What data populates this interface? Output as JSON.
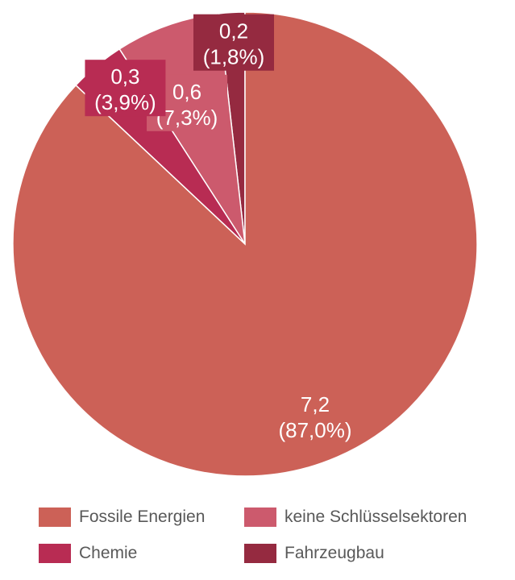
{
  "chart_data": {
    "type": "pie",
    "title": "",
    "start_angle_deg": 0,
    "direction": "clockwise",
    "slices": [
      {
        "name": "Fossile Energien",
        "value": 7.2,
        "value_label": "7,2",
        "percent_label": "(87,0%)",
        "percent": 87.0,
        "color": "#cc6157"
      },
      {
        "name": "Chemie",
        "value": 0.3,
        "value_label": "0,3",
        "percent_label": "(3,9%)",
        "percent": 3.9,
        "color": "#b82c53"
      },
      {
        "name": "keine Schlüsselsektoren",
        "value": 0.6,
        "value_label": "0,6",
        "percent_label": "(7,3%)",
        "percent": 7.3,
        "color": "#cc5a6d"
      },
      {
        "name": "Fahrzeugbau",
        "value": 0.2,
        "value_label": "0,2",
        "percent_label": "(1,8%)",
        "percent": 1.8,
        "color": "#952a40"
      }
    ],
    "legend": {
      "placement": "bottom",
      "items": [
        {
          "label": "Fossile Energien",
          "color": "#cc6157"
        },
        {
          "label": "keine Schlüsselsektoren",
          "color": "#cc5a6d"
        },
        {
          "label": "Chemie",
          "color": "#b82c53"
        },
        {
          "label": "Fahrzeugbau",
          "color": "#952a40"
        }
      ]
    }
  }
}
